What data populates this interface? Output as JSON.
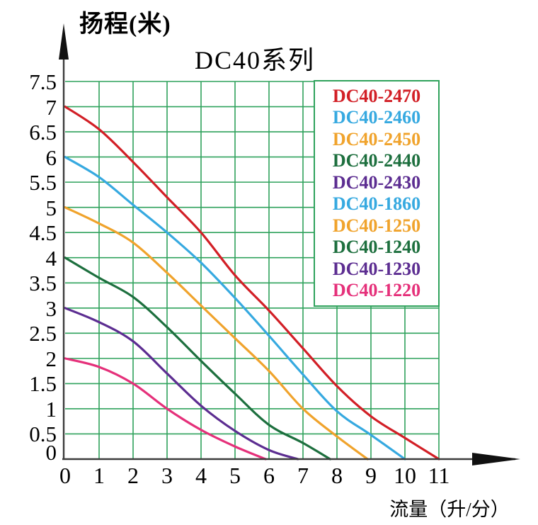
{
  "title": "DC40系列",
  "y_axis_label": "扬程(米)",
  "x_axis_label": "流量（升/分）",
  "colors": {
    "red": "#d21f26",
    "blue": "#36a9e0",
    "orange": "#f0a32c",
    "green": "#1d6f3e",
    "purple": "#5c2d91",
    "pink": "#e5307a",
    "grid": "#2fa25c",
    "axis": "#3c3c3c",
    "text": "#000000",
    "legend_border": "#2fa25c"
  },
  "legend": [
    {
      "label": "DC40-2470",
      "color": "#d21f26"
    },
    {
      "label": "DC40-2460",
      "color": "#36a9e0"
    },
    {
      "label": "DC40-2450",
      "color": "#f0a32c"
    },
    {
      "label": "DC40-2440",
      "color": "#1d6f3e"
    },
    {
      "label": "DC40-2430",
      "color": "#5c2d91"
    },
    {
      "label": "DC40-1860",
      "color": "#36a9e0"
    },
    {
      "label": "DC40-1250",
      "color": "#f0a32c"
    },
    {
      "label": "DC40-1240",
      "color": "#1d6f3e"
    },
    {
      "label": "DC40-1230",
      "color": "#5c2d91"
    },
    {
      "label": "DC40-1220",
      "color": "#e5307a"
    }
  ],
  "chart_data": {
    "type": "line",
    "title": "DC40系列",
    "xlabel": "流量（升/分）",
    "ylabel": "扬程(米)",
    "xlim": [
      0,
      11
    ],
    "ylim": [
      0,
      7.5
    ],
    "x_ticks": [
      0,
      1,
      2,
      3,
      4,
      5,
      6,
      7,
      8,
      9,
      10,
      11
    ],
    "y_ticks": [
      0,
      0.5,
      1,
      1.5,
      2,
      2.5,
      3,
      3.5,
      4,
      4.5,
      5,
      5.5,
      6,
      6.5,
      7,
      7.5
    ],
    "grid": true,
    "grid_step_x": 1,
    "grid_step_y": 0.5,
    "legend_position": "upper right",
    "series": [
      {
        "name": "DC40-2470",
        "models": [
          "DC40-2470"
        ],
        "color": "#d21f26",
        "points": [
          [
            0,
            7.0
          ],
          [
            1,
            6.55
          ],
          [
            2,
            5.9
          ],
          [
            3,
            5.2
          ],
          [
            4,
            4.5
          ],
          [
            5,
            3.65
          ],
          [
            6,
            2.95
          ],
          [
            7,
            2.2
          ],
          [
            8,
            1.45
          ],
          [
            9,
            0.85
          ],
          [
            10,
            0.42
          ],
          [
            11,
            0
          ]
        ]
      },
      {
        "name": "DC40-2460",
        "models": [
          "DC40-2460",
          "DC40-1860"
        ],
        "color": "#36a9e0",
        "points": [
          [
            0,
            6.0
          ],
          [
            1,
            5.6
          ],
          [
            2,
            5.05
          ],
          [
            3,
            4.5
          ],
          [
            4,
            3.9
          ],
          [
            5,
            3.2
          ],
          [
            6,
            2.45
          ],
          [
            7,
            1.68
          ],
          [
            8,
            0.95
          ],
          [
            9,
            0.48
          ],
          [
            10,
            0
          ]
        ]
      },
      {
        "name": "DC40-2450",
        "models": [
          "DC40-2450",
          "DC40-1250"
        ],
        "color": "#f0a32c",
        "points": [
          [
            0,
            5.0
          ],
          [
            1,
            4.68
          ],
          [
            2,
            4.3
          ],
          [
            3,
            3.7
          ],
          [
            4,
            3.05
          ],
          [
            5,
            2.4
          ],
          [
            6,
            1.75
          ],
          [
            7,
            1.0
          ],
          [
            8,
            0.45
          ],
          [
            8.9,
            0
          ]
        ]
      },
      {
        "name": "DC40-2440",
        "models": [
          "DC40-2440",
          "DC40-1240"
        ],
        "color": "#1d6f3e",
        "points": [
          [
            0,
            4.0
          ],
          [
            1,
            3.6
          ],
          [
            2,
            3.22
          ],
          [
            3,
            2.62
          ],
          [
            4,
            1.95
          ],
          [
            5,
            1.3
          ],
          [
            6,
            0.68
          ],
          [
            7,
            0.32
          ],
          [
            7.8,
            0
          ]
        ]
      },
      {
        "name": "DC40-2430",
        "models": [
          "DC40-2430",
          "DC40-1230"
        ],
        "color": "#5c2d91",
        "points": [
          [
            0,
            3.0
          ],
          [
            1,
            2.72
          ],
          [
            2,
            2.34
          ],
          [
            3,
            1.7
          ],
          [
            4,
            1.06
          ],
          [
            5,
            0.56
          ],
          [
            6,
            0.18
          ],
          [
            6.85,
            0
          ]
        ]
      },
      {
        "name": "DC40-1220",
        "models": [
          "DC40-1220"
        ],
        "color": "#e5307a",
        "points": [
          [
            0,
            2.0
          ],
          [
            1,
            1.83
          ],
          [
            2,
            1.5
          ],
          [
            3,
            1.0
          ],
          [
            4,
            0.58
          ],
          [
            5,
            0.25
          ],
          [
            5.9,
            0
          ]
        ]
      }
    ]
  }
}
